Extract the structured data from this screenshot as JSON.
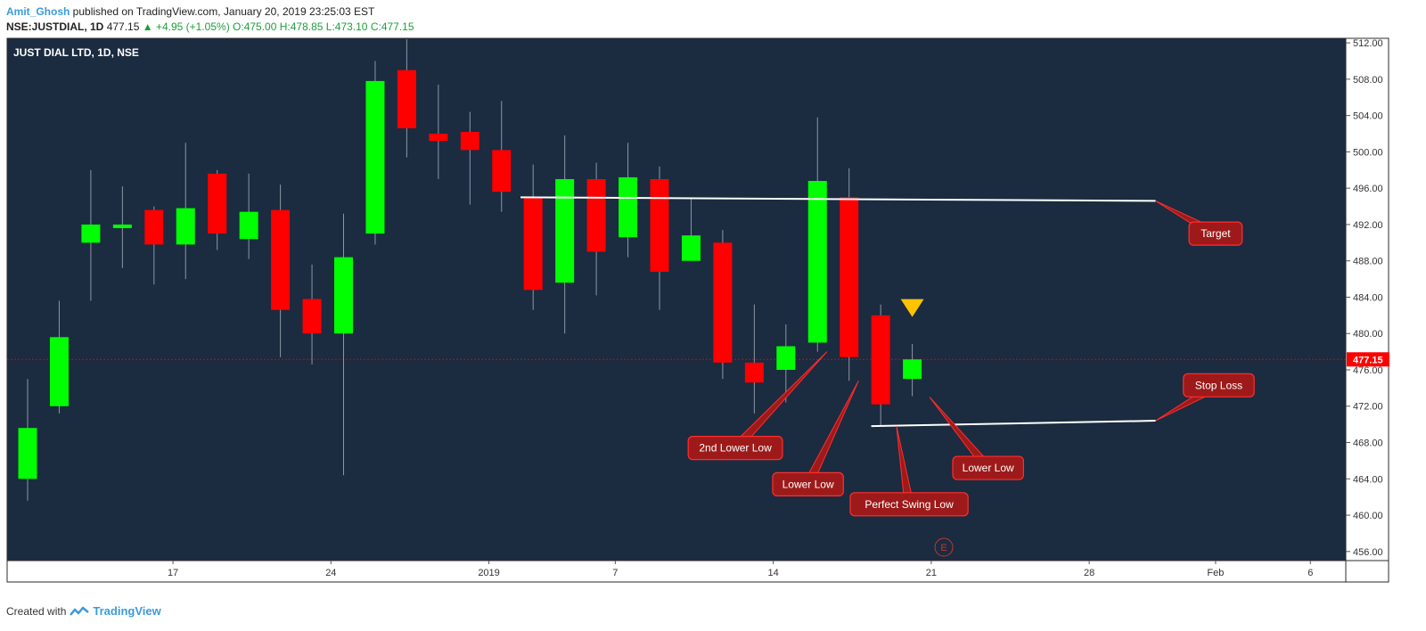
{
  "header": {
    "author": "Amit_Ghosh",
    "published_text": " published on TradingView.com, January 20, 2019 23:25:03 EST"
  },
  "symbol_line": {
    "symbol": "NSE:JUSTDIAL, 1D",
    "last": "477.15",
    "change": "▲ +4.95 (+1.05%)",
    "ohlc": "O:475.00 H:478.85 L:473.10 C:477.15"
  },
  "footer": {
    "created_with": "Created with",
    "brand": "TradingView"
  },
  "chart_data": {
    "type": "candlestick",
    "title": "JUST DIAL LTD, 1D, NSE",
    "colors": {
      "background": "#1b2b40",
      "up": "#00ff00",
      "down": "#ff0000",
      "wick": "#8d97a3",
      "axis_text": "#333333",
      "price_line": "#ff0000",
      "annotation_bg": "#9e1a1a",
      "annotation_border": "#ff2e2e",
      "trendline": "#ffffff",
      "marker": "#ffc400",
      "earnings": "#c0392b"
    },
    "ylim": [
      455,
      512.5
    ],
    "y_ticks": [
      512,
      508,
      504,
      500,
      496,
      492,
      488,
      484,
      480,
      476,
      472,
      468,
      464,
      460,
      456
    ],
    "y_tick_labels": [
      "512.00",
      "508.00",
      "504.00",
      "500.00",
      "496.00",
      "492.00",
      "488.00",
      "484.00",
      "480.00",
      "476.00",
      "472.00",
      "468.00",
      "464.00",
      "460.00",
      "456.00"
    ],
    "x_ticks": [
      {
        "label": "17",
        "index": 4.6
      },
      {
        "label": "24",
        "index": 9.6
      },
      {
        "label": "2019",
        "index": 14.6
      },
      {
        "label": "7",
        "index": 18.6
      },
      {
        "label": "14",
        "index": 23.6
      },
      {
        "label": "21",
        "index": 28.6
      },
      {
        "label": "28",
        "index": 33.6
      },
      {
        "label": "Feb",
        "index": 37.6
      },
      {
        "label": "6",
        "index": 40.6
      }
    ],
    "last_price": 477.15,
    "last_price_label": "477.15",
    "candles": [
      {
        "o": 464.0,
        "h": 475.0,
        "l": 461.6,
        "c": 469.6
      },
      {
        "o": 472.0,
        "h": 483.6,
        "l": 471.2,
        "c": 479.6
      },
      {
        "o": 490.0,
        "h": 498.0,
        "l": 483.6,
        "c": 492.0
      },
      {
        "o": 491.6,
        "h": 496.2,
        "l": 487.2,
        "c": 492.0
      },
      {
        "o": 493.6,
        "h": 494.0,
        "l": 485.4,
        "c": 489.8
      },
      {
        "o": 489.8,
        "h": 501.0,
        "l": 486.0,
        "c": 493.8
      },
      {
        "o": 497.6,
        "h": 498.0,
        "l": 489.2,
        "c": 491.0
      },
      {
        "o": 490.4,
        "h": 497.6,
        "l": 488.2,
        "c": 493.4
      },
      {
        "o": 493.6,
        "h": 496.4,
        "l": 477.4,
        "c": 482.6
      },
      {
        "o": 483.8,
        "h": 487.6,
        "l": 476.6,
        "c": 480.0
      },
      {
        "o": 480.0,
        "h": 493.2,
        "l": 464.4,
        "c": 488.4
      },
      {
        "o": 491.0,
        "h": 510.0,
        "l": 489.8,
        "c": 507.8
      },
      {
        "o": 509.0,
        "h": 512.4,
        "l": 499.4,
        "c": 502.6
      },
      {
        "o": 502.0,
        "h": 507.4,
        "l": 497.0,
        "c": 501.2
      },
      {
        "o": 502.2,
        "h": 504.4,
        "l": 494.2,
        "c": 500.2
      },
      {
        "o": 500.2,
        "h": 505.6,
        "l": 493.4,
        "c": 495.6
      },
      {
        "o": 495.0,
        "h": 498.6,
        "l": 482.6,
        "c": 484.8
      },
      {
        "o": 485.6,
        "h": 501.8,
        "l": 480.0,
        "c": 497.0
      },
      {
        "o": 497.0,
        "h": 498.8,
        "l": 484.2,
        "c": 489.0
      },
      {
        "o": 490.6,
        "h": 501.0,
        "l": 488.4,
        "c": 497.2
      },
      {
        "o": 497.0,
        "h": 498.4,
        "l": 482.6,
        "c": 486.8
      },
      {
        "o": 488.0,
        "h": 494.8,
        "l": 488.0,
        "c": 490.8
      },
      {
        "o": 490.0,
        "h": 491.4,
        "l": 475.0,
        "c": 476.8
      },
      {
        "o": 476.8,
        "h": 483.2,
        "l": 471.2,
        "c": 474.6
      },
      {
        "o": 476.0,
        "h": 481.0,
        "l": 472.4,
        "c": 478.6
      },
      {
        "o": 479.0,
        "h": 503.8,
        "l": 478.0,
        "c": 496.8
      },
      {
        "o": 495.0,
        "h": 498.2,
        "l": 474.8,
        "c": 477.4
      },
      {
        "o": 482.0,
        "h": 483.2,
        "l": 469.8,
        "c": 472.2
      },
      {
        "o": 475.0,
        "h": 478.85,
        "l": 473.1,
        "c": 477.15
      }
    ],
    "trendlines": [
      {
        "name": "target-line",
        "x1": 15.6,
        "y1": 495.0,
        "x2": 35.7,
        "y2": 494.6
      },
      {
        "name": "stop-loss-line",
        "x1": 26.7,
        "y1": 469.8,
        "x2": 35.7,
        "y2": 470.4
      }
    ],
    "annotations": [
      {
        "name": "target-label",
        "text": "Target",
        "box_x": 37.6,
        "box_y": 491.0,
        "tip_x": 35.7,
        "tip_y": 494.6
      },
      {
        "name": "stop-loss-label",
        "text": "Stop Loss",
        "box_x": 37.7,
        "box_y": 474.3,
        "tip_x": 35.7,
        "tip_y": 470.4
      },
      {
        "name": "second-lower-low-label",
        "text": "2nd Lower Low",
        "box_x": 22.4,
        "box_y": 467.4,
        "tip_x": 25.3,
        "tip_y": 478.0
      },
      {
        "name": "lower-low-label-left",
        "text": "Lower Low",
        "box_x": 24.7,
        "box_y": 463.4,
        "tip_x": 26.3,
        "tip_y": 474.8
      },
      {
        "name": "perfect-swing-low-label",
        "text": "Perfect Swing Low",
        "box_x": 27.9,
        "box_y": 461.2,
        "tip_x": 27.5,
        "tip_y": 469.8
      },
      {
        "name": "lower-low-label-right",
        "text": "Lower Low",
        "box_x": 30.4,
        "box_y": 465.2,
        "tip_x": 28.55,
        "tip_y": 473.0
      }
    ],
    "marker": {
      "type": "triangle-down",
      "index": 28.0,
      "price": 482.8
    },
    "earnings_marker": {
      "label": "E",
      "index": 29.0
    }
  }
}
